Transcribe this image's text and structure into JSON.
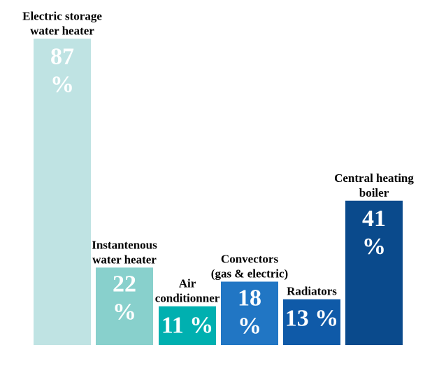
{
  "chart_data": {
    "type": "bar",
    "categories": [
      [
        "Electric storage",
        "water heater"
      ],
      [
        "Instantenous",
        "water heater"
      ],
      [
        "Air",
        "conditionner"
      ],
      [
        "Convectors",
        "(gas & electric)"
      ],
      [
        "Radiators"
      ],
      [
        "Central heating",
        "boiler"
      ]
    ],
    "values": [
      87,
      22,
      11,
      18,
      13,
      41
    ],
    "value_labels": [
      [
        "87",
        "%"
      ],
      [
        "22",
        "%"
      ],
      [
        "11 %"
      ],
      [
        "18",
        "%"
      ],
      [
        "13 %"
      ],
      [
        "41",
        "%"
      ]
    ],
    "colors": [
      "#bfe3e3",
      "#88d0cc",
      "#00b0b0",
      "#2176c4",
      "#0f5aa8",
      "#0a4a8c"
    ],
    "title": "",
    "xlabel": "",
    "ylabel": "",
    "ylim": [
      0,
      90
    ],
    "grid": false,
    "legend": "none"
  }
}
